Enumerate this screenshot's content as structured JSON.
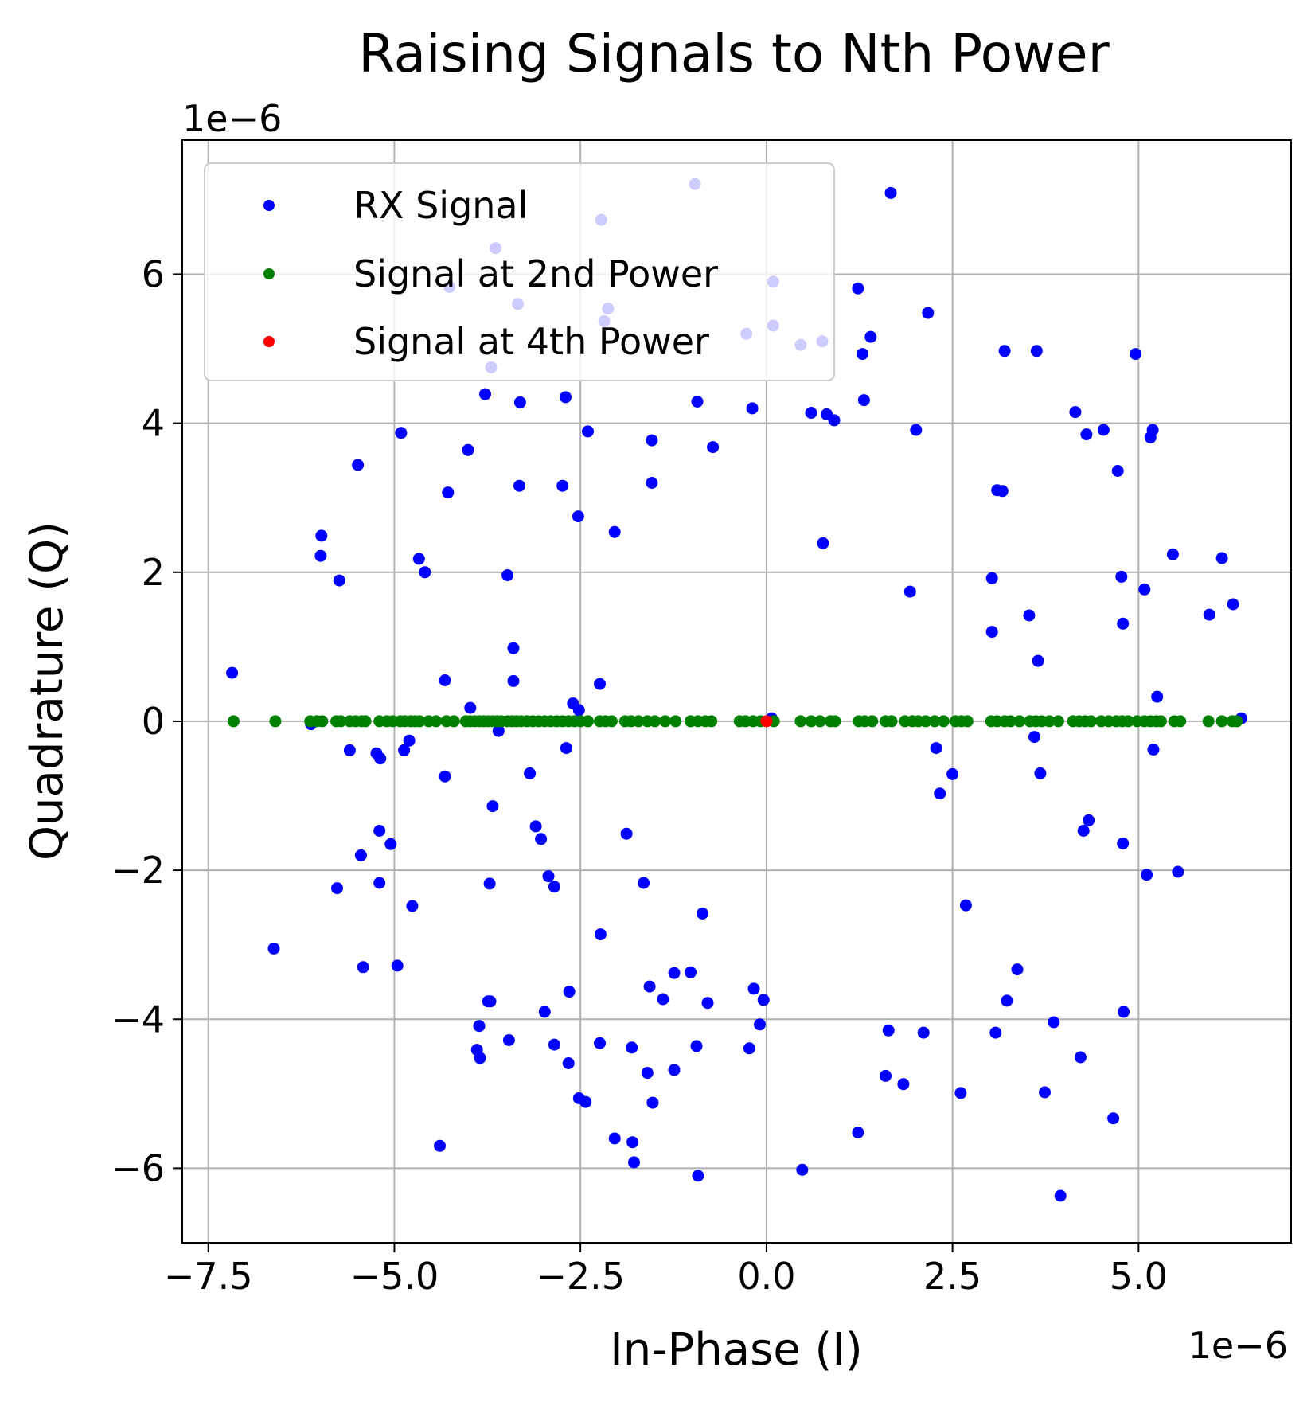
{
  "chart_data": {
    "type": "scatter",
    "title": "Raising Signals to Nth Power",
    "xlabel": "In-Phase (I)",
    "ylabel": "Quadrature (Q)",
    "x_offset_label": "1e−6",
    "y_offset_label": "1e−6",
    "xlim": [
      -7.85,
      7.05
    ],
    "ylim": [
      -7.0,
      7.8
    ],
    "xticks": [
      -7.5,
      -5.0,
      -2.5,
      0.0,
      2.5,
      5.0
    ],
    "xtick_labels": [
      "−7.5",
      "−5.0",
      "−2.5",
      "0.0",
      "2.5",
      "5.0"
    ],
    "yticks": [
      -6,
      -4,
      -2,
      0,
      2,
      4,
      6
    ],
    "ytick_labels": [
      "−6",
      "−4",
      "−2",
      "0",
      "2",
      "4",
      "6"
    ],
    "grid": true,
    "legend_position": "top-left",
    "series": [
      {
        "name": "RX Signal",
        "color": "#0000ff",
        "points": [
          [
            -7.18,
            0.65
          ],
          [
            -6.62,
            -3.05
          ],
          [
            -6.12,
            -0.04
          ],
          [
            -5.98,
            2.49
          ],
          [
            -5.99,
            2.22
          ],
          [
            -5.74,
            1.89
          ],
          [
            -5.77,
            -2.24
          ],
          [
            -5.6,
            -0.39
          ],
          [
            -5.49,
            3.44
          ],
          [
            -5.45,
            -1.8
          ],
          [
            -5.42,
            -3.3
          ],
          [
            -5.24,
            -0.43
          ],
          [
            -5.19,
            -0.5
          ],
          [
            -5.2,
            -1.47
          ],
          [
            -5.2,
            -2.17
          ],
          [
            -5.05,
            -1.65
          ],
          [
            -4.96,
            -3.28
          ],
          [
            -4.91,
            3.87
          ],
          [
            -4.87,
            -0.39
          ],
          [
            -4.8,
            -0.26
          ],
          [
            -4.76,
            -2.48
          ],
          [
            -4.67,
            2.18
          ],
          [
            -4.59,
            2.0
          ],
          [
            -4.32,
            0.55
          ],
          [
            -4.32,
            -0.74
          ],
          [
            -4.28,
            3.07
          ],
          [
            -4.26,
            5.83
          ],
          [
            -4.39,
            -5.7
          ],
          [
            -4.01,
            3.64
          ],
          [
            -3.98,
            0.18
          ],
          [
            -3.89,
            -4.41
          ],
          [
            -3.86,
            -4.09
          ],
          [
            -3.85,
            -4.52
          ],
          [
            -3.78,
            4.39
          ],
          [
            -3.74,
            -3.76
          ],
          [
            -3.71,
            -3.76
          ],
          [
            -3.72,
            -2.18
          ],
          [
            -3.7,
            4.75
          ],
          [
            -3.68,
            -1.14
          ],
          [
            -3.64,
            6.35
          ],
          [
            -3.6,
            -0.13
          ],
          [
            -3.48,
            1.96
          ],
          [
            -3.46,
            -4.28
          ],
          [
            -3.4,
            0.98
          ],
          [
            -3.4,
            0.54
          ],
          [
            -3.34,
            5.6
          ],
          [
            -3.32,
            3.16
          ],
          [
            -3.31,
            4.28
          ],
          [
            -3.18,
            -0.7
          ],
          [
            -3.1,
            -1.41
          ],
          [
            -3.03,
            -1.58
          ],
          [
            -2.98,
            -3.9
          ],
          [
            -2.93,
            -2.08
          ],
          [
            -2.85,
            -2.22
          ],
          [
            -2.85,
            -4.34
          ],
          [
            -2.74,
            3.16
          ],
          [
            -2.7,
            4.35
          ],
          [
            -2.69,
            -0.36
          ],
          [
            -2.65,
            -3.63
          ],
          [
            -2.66,
            -4.59
          ],
          [
            -2.6,
            0.24
          ],
          [
            -2.52,
            0.15
          ],
          [
            -2.53,
            2.75
          ],
          [
            -2.52,
            -5.06
          ],
          [
            -2.43,
            -5.11
          ],
          [
            -2.4,
            3.89
          ],
          [
            -2.24,
            0.5
          ],
          [
            -2.23,
            -2.86
          ],
          [
            -2.24,
            -4.32
          ],
          [
            -2.22,
            6.73
          ],
          [
            -2.18,
            5.37
          ],
          [
            -2.13,
            5.54
          ],
          [
            -2.04,
            -5.6
          ],
          [
            -2.04,
            2.54
          ],
          [
            -1.88,
            -1.51
          ],
          [
            -1.81,
            -4.38
          ],
          [
            -1.8,
            -5.65
          ],
          [
            -1.78,
            -5.92
          ],
          [
            -1.65,
            -2.17
          ],
          [
            -1.6,
            -4.72
          ],
          [
            -1.57,
            -3.56
          ],
          [
            -1.54,
            3.77
          ],
          [
            -1.54,
            3.2
          ],
          [
            -1.53,
            -5.12
          ],
          [
            -1.39,
            -3.73
          ],
          [
            -1.24,
            -4.68
          ],
          [
            -1.24,
            -3.38
          ],
          [
            -1.02,
            -3.37
          ],
          [
            -0.96,
            7.21
          ],
          [
            -0.94,
            -4.36
          ],
          [
            -0.93,
            4.29
          ],
          [
            -0.92,
            -6.1
          ],
          [
            -0.86,
            -2.58
          ],
          [
            -0.79,
            -3.78
          ],
          [
            -0.72,
            3.68
          ],
          [
            -0.27,
            5.2
          ],
          [
            -0.23,
            -4.39
          ],
          [
            -0.19,
            4.2
          ],
          [
            -0.17,
            -3.59
          ],
          [
            -0.09,
            -4.07
          ],
          [
            -0.04,
            -3.74
          ],
          [
            0.07,
            0.04
          ],
          [
            0.09,
            5.31
          ],
          [
            0.09,
            5.9
          ],
          [
            0.46,
            5.05
          ],
          [
            0.48,
            -6.02
          ],
          [
            0.6,
            4.14
          ],
          [
            0.75,
            5.1
          ],
          [
            0.76,
            2.39
          ],
          [
            0.81,
            4.12
          ],
          [
            0.91,
            4.04
          ],
          [
            1.23,
            5.81
          ],
          [
            1.23,
            -5.52
          ],
          [
            1.29,
            4.93
          ],
          [
            1.31,
            4.31
          ],
          [
            1.4,
            5.16
          ],
          [
            1.6,
            -4.76
          ],
          [
            1.64,
            -4.15
          ],
          [
            1.67,
            7.09
          ],
          [
            1.84,
            -4.87
          ],
          [
            1.93,
            1.74
          ],
          [
            2.01,
            3.91
          ],
          [
            2.11,
            -4.18
          ],
          [
            2.17,
            5.48
          ],
          [
            2.28,
            -0.36
          ],
          [
            2.33,
            -0.97
          ],
          [
            2.5,
            -0.71
          ],
          [
            2.61,
            -4.99
          ],
          [
            2.68,
            -2.47
          ],
          [
            3.03,
            1.92
          ],
          [
            3.03,
            1.2
          ],
          [
            3.08,
            -4.18
          ],
          [
            3.1,
            3.1
          ],
          [
            3.17,
            3.09
          ],
          [
            3.2,
            4.97
          ],
          [
            3.23,
            -3.75
          ],
          [
            3.37,
            -3.33
          ],
          [
            3.53,
            1.42
          ],
          [
            3.6,
            -0.21
          ],
          [
            3.63,
            4.97
          ],
          [
            3.65,
            0.81
          ],
          [
            3.68,
            -0.7
          ],
          [
            3.74,
            -4.98
          ],
          [
            3.86,
            -4.04
          ],
          [
            3.95,
            -6.37
          ],
          [
            4.15,
            4.15
          ],
          [
            4.22,
            -4.51
          ],
          [
            4.26,
            -1.47
          ],
          [
            4.3,
            3.85
          ],
          [
            4.33,
            -1.33
          ],
          [
            4.53,
            3.91
          ],
          [
            4.66,
            -5.33
          ],
          [
            4.72,
            3.36
          ],
          [
            4.77,
            1.94
          ],
          [
            4.79,
            1.31
          ],
          [
            4.79,
            -1.64
          ],
          [
            4.8,
            -3.9
          ],
          [
            4.96,
            4.93
          ],
          [
            5.08,
            1.77
          ],
          [
            5.11,
            -2.06
          ],
          [
            5.16,
            3.81
          ],
          [
            5.19,
            3.91
          ],
          [
            5.2,
            -0.38
          ],
          [
            5.25,
            0.33
          ],
          [
            5.46,
            2.24
          ],
          [
            5.53,
            -2.02
          ],
          [
            5.95,
            1.43
          ],
          [
            6.12,
            2.19
          ],
          [
            6.27,
            1.57
          ],
          [
            6.38,
            0.04
          ]
        ]
      },
      {
        "name": "Signal at 2nd Power",
        "color": "#008000",
        "x": [
          -7.16,
          -6.6,
          -6.13,
          -6.04,
          -5.97,
          -5.78,
          -5.72,
          -5.6,
          -5.52,
          -5.44,
          -5.39,
          -5.2,
          -5.1,
          -5.02,
          -4.92,
          -4.86,
          -4.78,
          -4.72,
          -4.66,
          -4.54,
          -4.44,
          -4.3,
          -4.2,
          -4.04,
          -3.98,
          -3.92,
          -3.86,
          -3.8,
          -3.74,
          -3.68,
          -3.62,
          -3.56,
          -3.48,
          -3.42,
          -3.36,
          -3.3,
          -3.22,
          -3.14,
          -3.06,
          -2.98,
          -2.9,
          -2.82,
          -2.74,
          -2.66,
          -2.58,
          -2.5,
          -2.4,
          -2.24,
          -2.16,
          -2.08,
          -1.9,
          -1.82,
          -1.72,
          -1.6,
          -1.5,
          -1.36,
          -1.22,
          -1.02,
          -0.92,
          -0.82,
          -0.74,
          -0.36,
          -0.28,
          -0.18,
          -0.08,
          0.1,
          0.46,
          0.6,
          0.72,
          0.86,
          0.92,
          1.24,
          1.32,
          1.42,
          1.6,
          1.68,
          1.86,
          1.96,
          2.04,
          2.14,
          2.26,
          2.38,
          2.54,
          2.62,
          2.7,
          3.02,
          3.1,
          3.2,
          3.28,
          3.4,
          3.54,
          3.62,
          3.7,
          3.8,
          3.92,
          4.12,
          4.2,
          4.28,
          4.36,
          4.5,
          4.6,
          4.7,
          4.78,
          4.86,
          4.98,
          5.08,
          5.16,
          5.24,
          5.3,
          5.48,
          5.56,
          5.94,
          6.12,
          6.26,
          6.32
        ]
      },
      {
        "name": "Signal at 4th Power",
        "color": "#ff0000",
        "points": [
          [
            0.0,
            0.0
          ]
        ]
      }
    ]
  }
}
